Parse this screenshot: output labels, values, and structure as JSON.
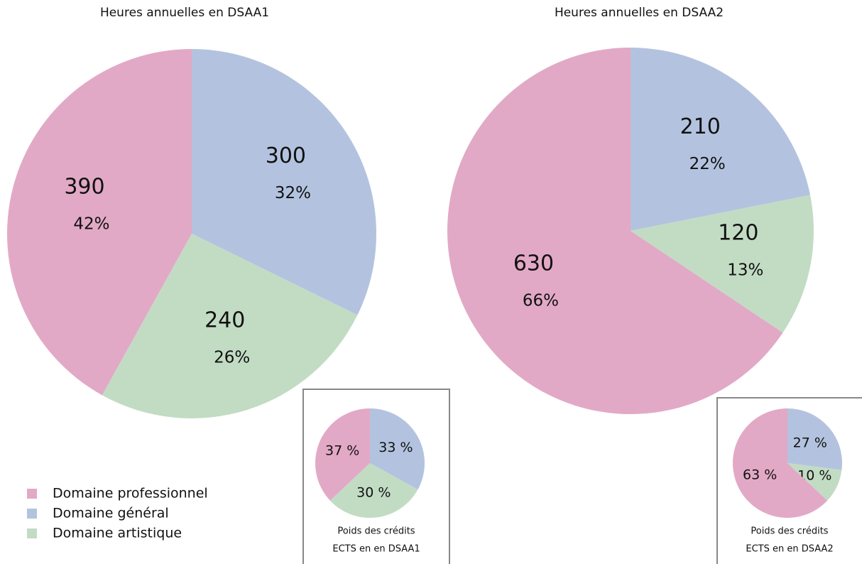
{
  "legend": {
    "labels": [
      "Domaine professionnel",
      "Domaine général",
      "Domaine artistique"
    ],
    "colors": [
      "#e2a9c6",
      "#b3c3df",
      "#c2dcc4"
    ]
  },
  "chart_data": [
    {
      "type": "pie",
      "title": "Heures annuelles en DSAA1",
      "values": [
        300,
        240,
        390
      ],
      "percent_labels": [
        "32%",
        "26%",
        "42%"
      ],
      "colors": [
        "#b3c3df",
        "#c2dcc4",
        "#e2a9c6"
      ]
    },
    {
      "type": "pie",
      "title": "Heures annuelles en DSAA2",
      "values": [
        210,
        120,
        630
      ],
      "percent_labels": [
        "22%",
        "13%",
        "66%"
      ],
      "colors": [
        "#b3c3df",
        "#c2dcc4",
        "#e2a9c6"
      ]
    },
    {
      "type": "pie",
      "title_lines": [
        "Poids des crédits",
        "ECTS en en DSAA1"
      ],
      "values": [
        33,
        30,
        37
      ],
      "value_labels": [
        "33 %",
        "30 %",
        "37 %"
      ],
      "colors": [
        "#b3c3df",
        "#c2dcc4",
        "#e2a9c6"
      ]
    },
    {
      "type": "pie",
      "title_lines": [
        "Poids des crédits",
        "ECTS en en DSAA2"
      ],
      "values": [
        27,
        10,
        63
      ],
      "value_labels": [
        "27 %",
        "10 %",
        "63 %"
      ],
      "colors": [
        "#b3c3df",
        "#c2dcc4",
        "#e2a9c6"
      ]
    }
  ]
}
